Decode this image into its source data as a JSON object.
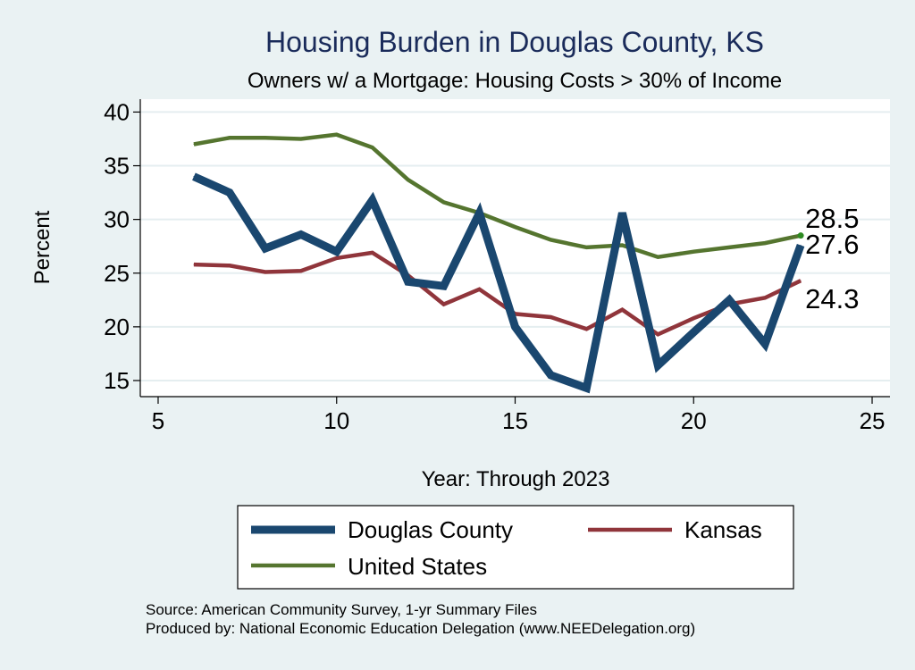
{
  "chart_data": {
    "type": "line",
    "title": "Housing Burden in Douglas County, KS",
    "subtitle": "Owners w/ a Mortgage: Housing Costs > 30% of Income",
    "xlabel": "Year: Through 2023",
    "ylabel": "Percent",
    "xlim": [
      4.5,
      25.5
    ],
    "ylim": [
      13.5,
      41.2
    ],
    "x_ticks": [
      5,
      10,
      15,
      20,
      25
    ],
    "y_ticks": [
      15,
      20,
      25,
      30,
      35,
      40
    ],
    "grid": true,
    "x": [
      6,
      7,
      8,
      9,
      10,
      11,
      12,
      13,
      14,
      15,
      16,
      17,
      18,
      19,
      20,
      21,
      22,
      23
    ],
    "series": [
      {
        "name": "Douglas County",
        "color": "#1a476f",
        "values": [
          34.0,
          32.5,
          27.3,
          28.6,
          27.0,
          31.8,
          24.2,
          23.8,
          30.6,
          20.0,
          15.5,
          14.3,
          30.6,
          16.4,
          19.5,
          22.5,
          18.4,
          27.6
        ],
        "end_label": "27.6"
      },
      {
        "name": "Kansas",
        "color": "#90353b",
        "values": [
          25.8,
          25.7,
          25.1,
          25.2,
          26.4,
          26.9,
          24.8,
          22.1,
          23.5,
          21.2,
          20.9,
          19.8,
          21.6,
          19.3,
          20.8,
          22.1,
          22.7,
          24.3
        ],
        "end_label": "24.3"
      },
      {
        "name": "United States",
        "color": "#55752f",
        "values": [
          37.0,
          37.6,
          37.6,
          37.5,
          37.9,
          36.7,
          33.7,
          31.6,
          30.6,
          29.3,
          28.1,
          27.4,
          27.6,
          26.5,
          27.0,
          27.4,
          27.8,
          28.5
        ],
        "end_label": "28.5"
      }
    ],
    "legend_position": "bottom"
  },
  "source_note": "Source: American Community Survey, 1-yr Summary Files",
  "producer_note": "Produced by: National Economic Education Delegation (www.NEEDelegation.org)"
}
